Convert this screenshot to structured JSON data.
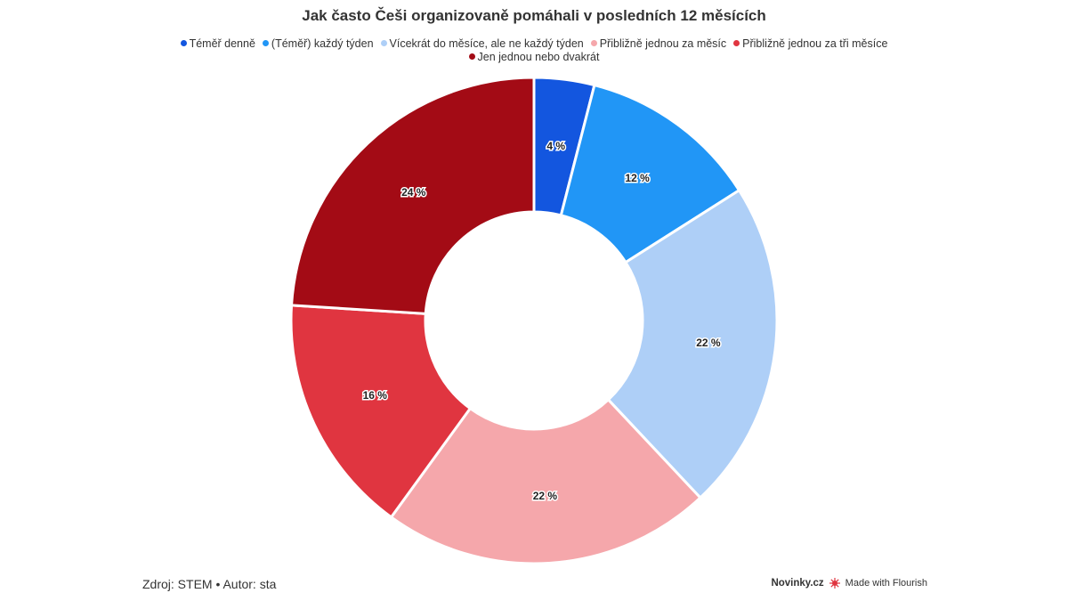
{
  "chart_data": {
    "type": "pie",
    "title": "Jak často Češi organizovaně pomáhali v posledních 12 měsících",
    "categories": [
      "Téměř denně",
      "(Téměř) každý týden",
      "Vícekrát do měsíce, ale ne každý týden",
      "Přibližně jednou za měsíc",
      "Přibližně jednou za tři měsíce",
      "Jen jednou nebo dvakrát"
    ],
    "values": [
      4,
      12,
      22,
      22,
      16,
      24
    ],
    "labels": [
      "4 %",
      "12 %",
      "22 %",
      "22 %",
      "16 %",
      "24 %"
    ],
    "colors": [
      "#1356df",
      "#2196f6",
      "#aecff7",
      "#f5a7ab",
      "#e03540",
      "#a30b15"
    ],
    "donut": true,
    "legend_position": "top"
  },
  "footer": {
    "source": "Zdroj: STEM • Autor: sta",
    "brand": "Novinky.cz",
    "made_with": "Made with Flourish"
  }
}
